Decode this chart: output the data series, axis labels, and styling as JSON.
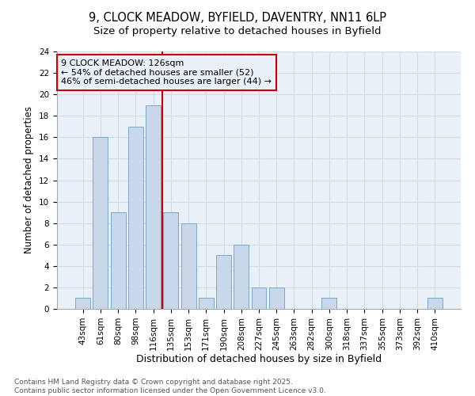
{
  "title_line1": "9, CLOCK MEADOW, BYFIELD, DAVENTRY, NN11 6LP",
  "title_line2": "Size of property relative to detached houses in Byfield",
  "xlabel": "Distribution of detached houses by size in Byfield",
  "ylabel": "Number of detached properties",
  "categories": [
    "43sqm",
    "61sqm",
    "80sqm",
    "98sqm",
    "116sqm",
    "135sqm",
    "153sqm",
    "171sqm",
    "190sqm",
    "208sqm",
    "227sqm",
    "245sqm",
    "263sqm",
    "282sqm",
    "300sqm",
    "318sqm",
    "337sqm",
    "355sqm",
    "373sqm",
    "392sqm",
    "410sqm"
  ],
  "values": [
    1,
    16,
    9,
    17,
    19,
    9,
    8,
    1,
    5,
    6,
    2,
    2,
    0,
    0,
    1,
    0,
    0,
    0,
    0,
    0,
    1
  ],
  "bar_facecolor": "#c8d8ea",
  "bar_edgecolor": "#7aaac8",
  "grid_color": "#d0dce8",
  "background_color": "#ffffff",
  "plot_bg_color": "#eaf0f8",
  "vline_x": 4.5,
  "vline_color": "#cc0000",
  "annotation_text_line1": "9 CLOCK MEADOW: 126sqm",
  "annotation_text_line2": "← 54% of detached houses are smaller (52)",
  "annotation_text_line3": "46% of semi-detached houses are larger (44) →",
  "annotation_fontsize": 8.0,
  "box_edgecolor": "#cc0000",
  "ylim": [
    0,
    24
  ],
  "yticks": [
    0,
    2,
    4,
    6,
    8,
    10,
    12,
    14,
    16,
    18,
    20,
    22,
    24
  ],
  "footnote": "Contains HM Land Registry data © Crown copyright and database right 2025.\nContains public sector information licensed under the Open Government Licence v3.0.",
  "title_fontsize": 10.5,
  "subtitle_fontsize": 9.5,
  "xlabel_fontsize": 9.0,
  "ylabel_fontsize": 8.5,
  "tick_fontsize": 7.5,
  "footnote_fontsize": 6.5
}
